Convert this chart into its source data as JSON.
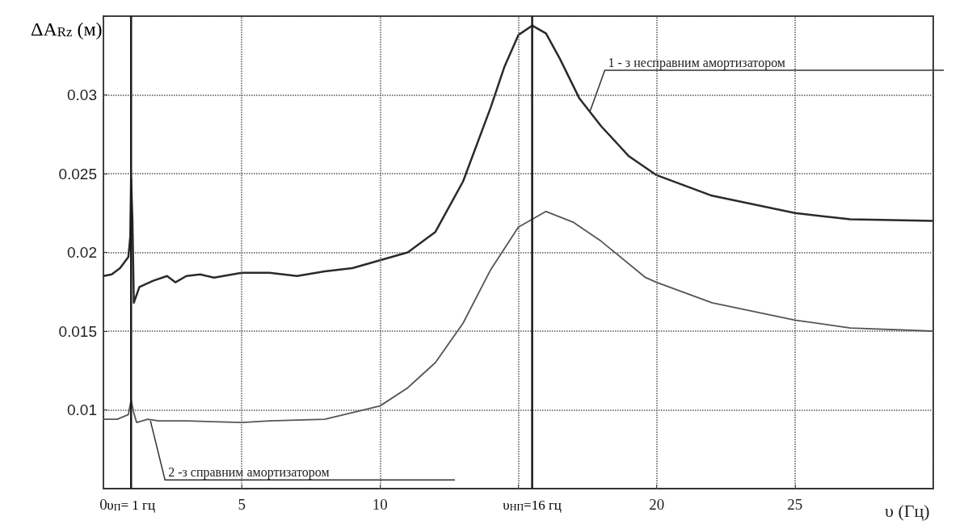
{
  "chart_data": {
    "type": "line",
    "xlabel": "υ (Гц)",
    "ylabel": "ΔA$_{Rz}$ (м)",
    "xlim": [
      0,
      30
    ],
    "ylim": [
      0.005,
      0.035
    ],
    "xticks": [
      0,
      5,
      10,
      {
        "value": 15,
        "label": null
      },
      20,
      25,
      {
        "value": 30,
        "label": null
      }
    ],
    "yticks": [
      {
        "value": 0.005,
        "label": null
      },
      0.01,
      0.015,
      0.02,
      0.025,
      0.03,
      {
        "value": 0.035,
        "label": null
      }
    ],
    "grid": true,
    "line_style": "solid",
    "marker": "none",
    "series": [
      {
        "color": "#2a2a2a",
        "x": [
          0,
          0.3,
          0.6,
          0.9,
          0.97,
          1.0,
          1.05,
          1.1,
          1.3,
          1.8,
          2.3,
          2.6,
          3,
          3.5,
          4,
          5,
          6,
          7,
          8,
          9,
          10,
          11,
          12,
          13,
          14,
          14.5,
          15,
          15.5,
          16,
          16.5,
          17.2,
          18,
          19,
          20,
          22,
          25,
          27,
          30
        ],
        "values": [
          0.0185,
          0.0186,
          0.019,
          0.0197,
          0.021,
          0.0247,
          0.022,
          0.0168,
          0.0178,
          0.0182,
          0.0185,
          0.0181,
          0.0185,
          0.0186,
          0.0184,
          0.0187,
          0.0187,
          0.0185,
          0.0188,
          0.019,
          0.0195,
          0.02,
          0.0213,
          0.0245,
          0.0292,
          0.0318,
          0.0338,
          0.0344,
          0.0339,
          0.0323,
          0.0298,
          0.028,
          0.0261,
          0.0249,
          0.0236,
          0.0225,
          0.0221,
          0.022
        ]
      },
      {
        "color": "#555555",
        "x": [
          0,
          0.5,
          0.9,
          1.0,
          1.1,
          1.2,
          1.6,
          2,
          3,
          5,
          6,
          8,
          10,
          11,
          12,
          13,
          14,
          15,
          16,
          17,
          18,
          19.6,
          20,
          22,
          25,
          27,
          30
        ],
        "values": [
          0.0094,
          0.0094,
          0.0097,
          0.0106,
          0.0098,
          0.0092,
          0.0094,
          0.0093,
          0.0093,
          0.0092,
          0.0093,
          0.0094,
          0.01025,
          0.0114,
          0.013,
          0.0155,
          0.0189,
          0.0216,
          0.0226,
          0.0219,
          0.0207,
          0.0184,
          0.0181,
          0.0168,
          0.0157,
          0.0152,
          0.015
        ]
      }
    ],
    "ref_lines": [
      {
        "axis": "x",
        "value": 1,
        "label": "υ$_{П}$= 1 гц",
        "color": "#1a1a1a"
      },
      {
        "axis": "x",
        "value": 15.5,
        "label": "υ$_{НП}$=16 гц",
        "color": "#1a1a1a"
      }
    ],
    "annotations": [
      {
        "text": "1 - з несправним амортизатором",
        "x": 17.6,
        "y": 0.029
      },
      {
        "text": "2 -з справним амортизатором",
        "x": 1.7,
        "y": 0.0093
      }
    ]
  }
}
